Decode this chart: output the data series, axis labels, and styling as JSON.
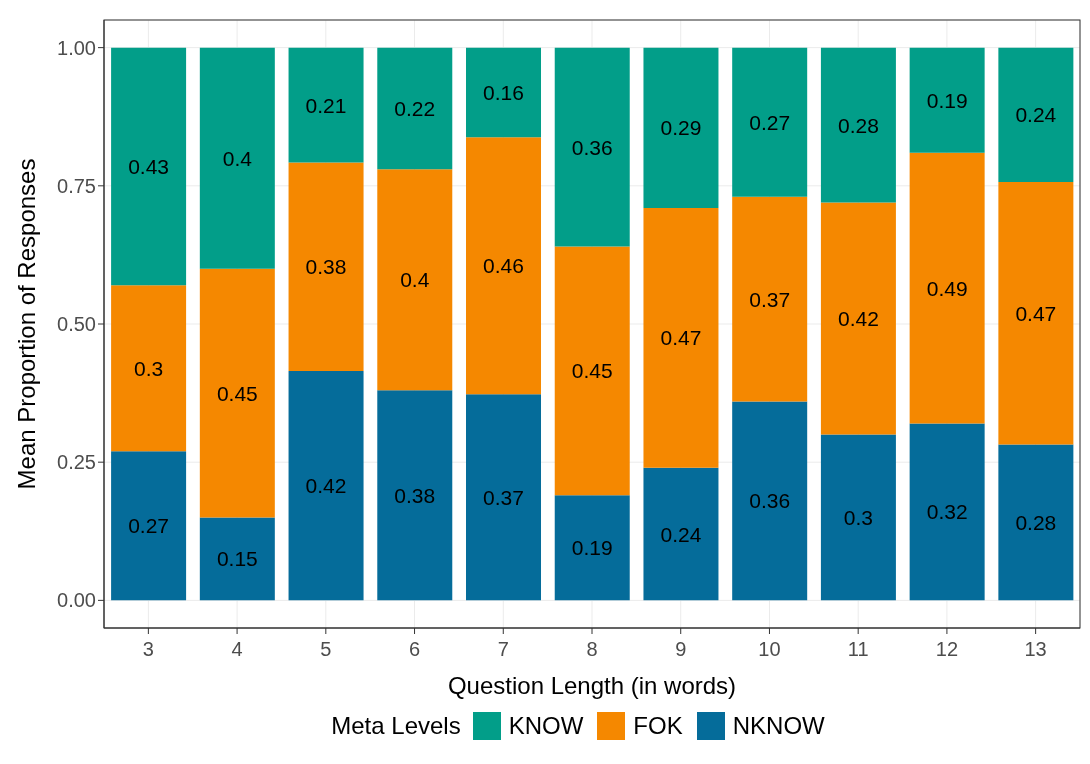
{
  "chart_data": {
    "type": "bar",
    "stacked": true,
    "xlabel": "Question Length (in words)",
    "ylabel": "Mean Proportion of Responses",
    "legend_title": "Meta Levels",
    "legend": "bottom",
    "grid": true,
    "categories": [
      "3",
      "4",
      "5",
      "6",
      "7",
      "8",
      "9",
      "10",
      "11",
      "12",
      "13"
    ],
    "ylim": [
      -0.05,
      1.05
    ],
    "yticks": [
      {
        "value": 0,
        "label": "0.00"
      },
      {
        "value": 0.25,
        "label": "0.25"
      },
      {
        "value": 0.5,
        "label": "0.50"
      },
      {
        "value": 0.75,
        "label": "0.75"
      },
      {
        "value": 1,
        "label": "1.00"
      }
    ],
    "series": [
      {
        "name": "NKNOW",
        "color": "#056c9a",
        "values": [
          0.27,
          0.15,
          0.415,
          0.38,
          0.373,
          0.19,
          0.24,
          0.36,
          0.3,
          0.32,
          0.282
        ],
        "value_labels": [
          "0.27",
          "0.15",
          "0.42",
          "0.38",
          "0.37",
          "0.19",
          "0.24",
          "0.36",
          "0.3",
          "0.32",
          "0.28"
        ]
      },
      {
        "name": "FOK",
        "color": "#f58800",
        "values": [
          0.3,
          0.45,
          0.377,
          0.4,
          0.465,
          0.45,
          0.47,
          0.37,
          0.42,
          0.49,
          0.475
        ],
        "value_labels": [
          "0.3",
          "0.45",
          "0.38",
          "0.4",
          "0.46",
          "0.45",
          "0.47",
          "0.37",
          "0.42",
          "0.49",
          "0.47"
        ]
      },
      {
        "name": "KNOW",
        "color": "#029e89",
        "values": [
          0.43,
          0.4,
          0.208,
          0.22,
          0.162,
          0.36,
          0.29,
          0.27,
          0.28,
          0.19,
          0.243
        ],
        "value_labels": [
          "0.43",
          "0.4",
          "0.21",
          "0.22",
          "0.16",
          "0.36",
          "0.29",
          "0.27",
          "0.28",
          "0.19",
          "0.24"
        ]
      }
    ]
  }
}
